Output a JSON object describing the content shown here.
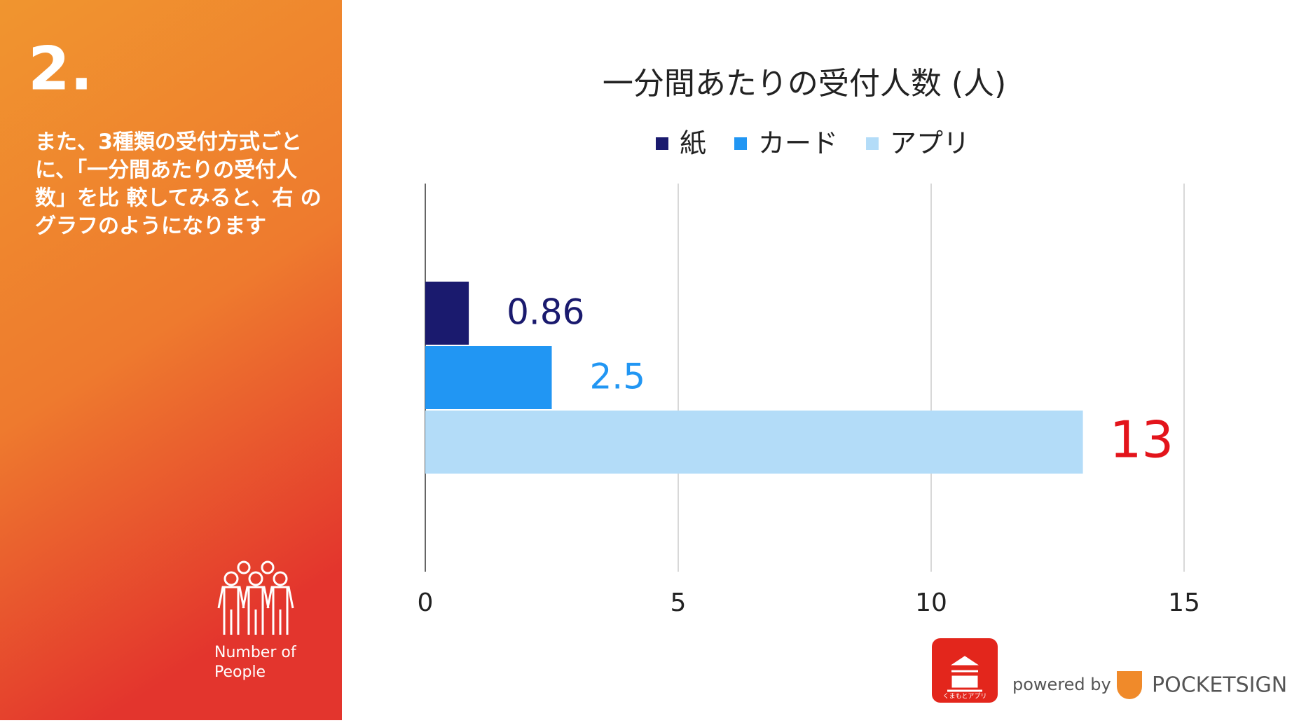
{
  "sidebar": {
    "number": "2.",
    "lines": [
      "また、3種類の受付方式ごと",
      "に、「一分間あたりの受付人",
      "数」を比 較してみると、右 の",
      "グラフのようになります"
    ],
    "icon_label": [
      "Number of",
      "People"
    ]
  },
  "footer": {
    "logo_text": "くまもとアプリ",
    "powered": "powered by",
    "brand": "POCKETSIGN"
  },
  "chart_data": {
    "type": "bar",
    "orientation": "horizontal",
    "title": "一分間あたりの受付人数 (人)",
    "categories": [
      null
    ],
    "series": [
      {
        "name": "紙",
        "color": "#1a1a6e",
        "label_color": "#1a1a6e",
        "values": [
          0.86
        ]
      },
      {
        "name": "カード",
        "color": "#2196f3",
        "label_color": "#2196f3",
        "values": [
          2.5
        ]
      },
      {
        "name": "アプリ",
        "color": "#b3dcf8",
        "label_color": "#e3141b",
        "values": [
          13
        ]
      }
    ],
    "xlim": [
      0,
      15
    ],
    "xticks": [
      0,
      5,
      10,
      15
    ],
    "grid": true,
    "legend": "top"
  }
}
